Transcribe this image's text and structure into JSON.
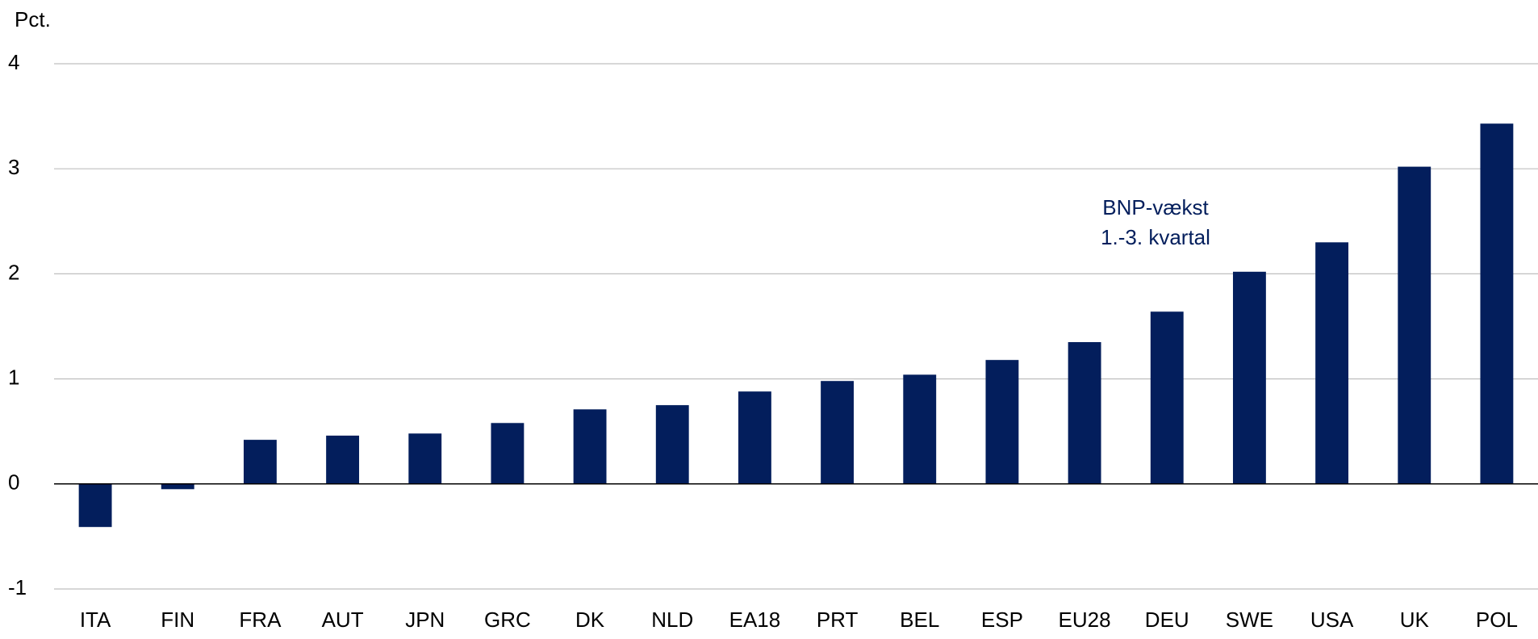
{
  "chart_data": {
    "type": "bar",
    "y_axis_label": "Pct.",
    "annotation": [
      "BNP-vækst",
      "1.-3. kvartal"
    ],
    "categories": [
      "ITA",
      "FIN",
      "FRA",
      "AUT",
      "JPN",
      "GRC",
      "DK",
      "NLD",
      "EA18",
      "PRT",
      "BEL",
      "ESP",
      "EU28",
      "DEU",
      "SWE",
      "USA",
      "UK",
      "POL"
    ],
    "values": [
      -0.41,
      -0.05,
      0.42,
      0.46,
      0.48,
      0.58,
      0.71,
      0.75,
      0.88,
      0.98,
      1.04,
      1.18,
      1.35,
      1.64,
      2.02,
      2.3,
      3.02,
      3.43
    ],
    "color": "#031e5c",
    "ylim": [
      -1,
      4
    ],
    "yticks": [
      -1,
      0,
      1,
      2,
      3,
      4
    ],
    "grid": true
  }
}
